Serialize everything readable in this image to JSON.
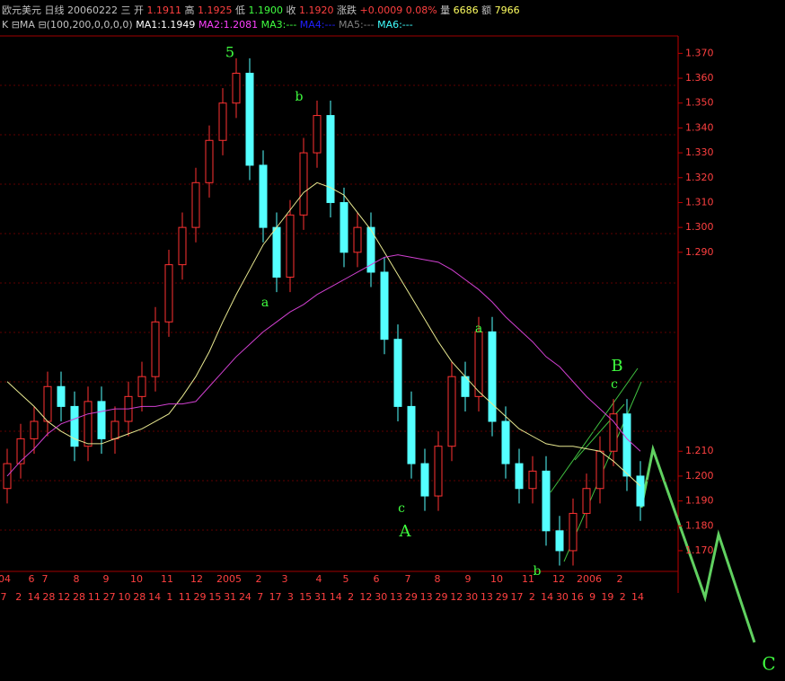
{
  "header": {
    "name": "欧元美元",
    "period": "日线",
    "date": "20060222",
    "weekday": "三",
    "fields": [
      {
        "label": "开",
        "value": "1.1911"
      },
      {
        "label": "高",
        "value": "1.1925"
      },
      {
        "label": "低",
        "value": "1.1900"
      },
      {
        "label": "收",
        "value": "1.1920"
      },
      {
        "label": "涨跌",
        "value": "+0.0009 0.08%"
      },
      {
        "label": "量",
        "value": "6686"
      },
      {
        "label": "额",
        "value": "7966"
      }
    ],
    "indicator": "K ⊟MA ⊟(100,200,0,0,0,0)",
    "ma": [
      {
        "text": "MA1:1.1949",
        "color": "#ffffff"
      },
      {
        "text": "MA2:1.2081",
        "color": "#ff40ff"
      },
      {
        "text": "MA3:---",
        "color": "#40ff40"
      },
      {
        "text": "MA4:---",
        "color": "#2020ff"
      },
      {
        "text": "MA5:---",
        "color": "#808080"
      },
      {
        "text": "MA6:---",
        "color": "#40ffff"
      }
    ]
  },
  "chart_data": {
    "type": "candlestick",
    "open": [
      1.195,
      1.205,
      1.215,
      1.222,
      1.236,
      1.228,
      1.212,
      1.23,
      1.215,
      1.222,
      1.232,
      1.24,
      1.262,
      1.285,
      1.3,
      1.318,
      1.335,
      1.35,
      1.362,
      1.325,
      1.3,
      1.28,
      1.305,
      1.33,
      1.345,
      1.31,
      1.29,
      1.3,
      1.282,
      1.255,
      1.228,
      1.205,
      1.192,
      1.212,
      1.24,
      1.232,
      1.258,
      1.222,
      1.205,
      1.195,
      1.202,
      1.178,
      1.17,
      1.185,
      1.195,
      1.21,
      1.225,
      1.2
    ],
    "high": [
      1.211,
      1.221,
      1.228,
      1.242,
      1.242,
      1.234,
      1.236,
      1.236,
      1.228,
      1.238,
      1.246,
      1.268,
      1.291,
      1.306,
      1.324,
      1.341,
      1.356,
      1.368,
      1.368,
      1.331,
      1.306,
      1.311,
      1.336,
      1.351,
      1.351,
      1.316,
      1.306,
      1.306,
      1.288,
      1.261,
      1.234,
      1.211,
      1.218,
      1.246,
      1.246,
      1.264,
      1.264,
      1.228,
      1.211,
      1.208,
      1.208,
      1.184,
      1.191,
      1.201,
      1.216,
      1.231,
      1.231,
      1.206
    ],
    "low": [
      1.189,
      1.199,
      1.209,
      1.216,
      1.222,
      1.206,
      1.206,
      1.209,
      1.209,
      1.216,
      1.226,
      1.234,
      1.256,
      1.279,
      1.294,
      1.312,
      1.329,
      1.344,
      1.319,
      1.294,
      1.274,
      1.274,
      1.299,
      1.324,
      1.304,
      1.284,
      1.284,
      1.276,
      1.249,
      1.222,
      1.199,
      1.186,
      1.186,
      1.206,
      1.226,
      1.226,
      1.216,
      1.199,
      1.189,
      1.189,
      1.172,
      1.164,
      1.164,
      1.179,
      1.189,
      1.204,
      1.194,
      1.182
    ],
    "close": [
      1.205,
      1.215,
      1.222,
      1.236,
      1.228,
      1.212,
      1.23,
      1.215,
      1.222,
      1.232,
      1.24,
      1.262,
      1.285,
      1.3,
      1.318,
      1.335,
      1.35,
      1.362,
      1.325,
      1.3,
      1.28,
      1.305,
      1.33,
      1.345,
      1.31,
      1.29,
      1.3,
      1.282,
      1.255,
      1.228,
      1.205,
      1.192,
      1.212,
      1.24,
      1.232,
      1.258,
      1.222,
      1.205,
      1.195,
      1.202,
      1.178,
      1.17,
      1.185,
      1.195,
      1.21,
      1.225,
      1.2,
      1.188
    ],
    "up_color": "#ff3232",
    "down_color": "#54ffff",
    "series": [
      {
        "name": "MA1",
        "color": "#e8e890",
        "values": [
          1.238,
          1.233,
          1.228,
          1.222,
          1.218,
          1.215,
          1.213,
          1.213,
          1.215,
          1.217,
          1.219,
          1.222,
          1.225,
          1.232,
          1.24,
          1.25,
          1.262,
          1.273,
          1.283,
          1.293,
          1.3,
          1.307,
          1.314,
          1.318,
          1.316,
          1.313,
          1.306,
          1.299,
          1.29,
          1.281,
          1.272,
          1.263,
          1.254,
          1.246,
          1.24,
          1.234,
          1.229,
          1.224,
          1.219,
          1.216,
          1.213,
          1.212,
          1.212,
          1.211,
          1.21,
          1.206,
          1.201,
          1.196
        ]
      },
      {
        "name": "MA2",
        "color": "#d040d0",
        "values": [
          1.2,
          1.206,
          1.211,
          1.217,
          1.221,
          1.223,
          1.225,
          1.226,
          1.227,
          1.227,
          1.228,
          1.228,
          1.229,
          1.229,
          1.23,
          1.236,
          1.242,
          1.248,
          1.253,
          1.258,
          1.262,
          1.266,
          1.269,
          1.273,
          1.276,
          1.279,
          1.282,
          1.285,
          1.288,
          1.289,
          1.288,
          1.287,
          1.286,
          1.283,
          1.279,
          1.275,
          1.27,
          1.264,
          1.259,
          1.254,
          1.248,
          1.244,
          1.238,
          1.232,
          1.227,
          1.222,
          1.215,
          1.21
        ]
      }
    ],
    "ylim": [
      1.153,
      1.377
    ],
    "yticks": [
      {
        "value": 1.37,
        "label": "1.370"
      },
      {
        "value": 1.36,
        "label": "1.360"
      },
      {
        "value": 1.35,
        "label": "1.350"
      },
      {
        "value": 1.34,
        "label": "1.340"
      },
      {
        "value": 1.33,
        "label": "1.330"
      },
      {
        "value": 1.32,
        "label": "1.320"
      },
      {
        "value": 1.31,
        "label": "1.310"
      },
      {
        "value": 1.3,
        "label": "1.300"
      },
      {
        "value": 1.29,
        "label": "1.290"
      },
      {
        "value": 1.21,
        "label": "1.210"
      },
      {
        "value": 1.2,
        "label": "1.200"
      },
      {
        "value": 1.19,
        "label": "1.190"
      },
      {
        "value": 1.18,
        "label": "1.180"
      },
      {
        "value": 1.17,
        "label": "1.170"
      }
    ],
    "month_labels": [
      "04",
      "6",
      "7",
      "8",
      "9",
      "10",
      "11",
      "12",
      "2005",
      "2",
      "3",
      "4",
      "5",
      "6",
      "7",
      "8",
      "9",
      "10",
      "11",
      "12",
      "2006",
      "2"
    ],
    "day_labels": [
      "7",
      "2",
      "14",
      "28",
      "12",
      "28",
      "11",
      "27",
      "10",
      "28",
      "14",
      "1",
      "11",
      "29",
      "15",
      "31",
      "24",
      "7",
      "17",
      "3",
      "15",
      "31",
      "14",
      "2",
      "12",
      "30",
      "13",
      "29",
      "13",
      "29",
      "12",
      "30",
      "13",
      "29",
      "17",
      "2",
      "14",
      "30",
      "16",
      "9",
      "19",
      "2",
      "14"
    ],
    "annotations": [
      "5",
      "b",
      "a",
      "a",
      "b",
      "c",
      "A",
      "B",
      "c",
      "C"
    ]
  }
}
